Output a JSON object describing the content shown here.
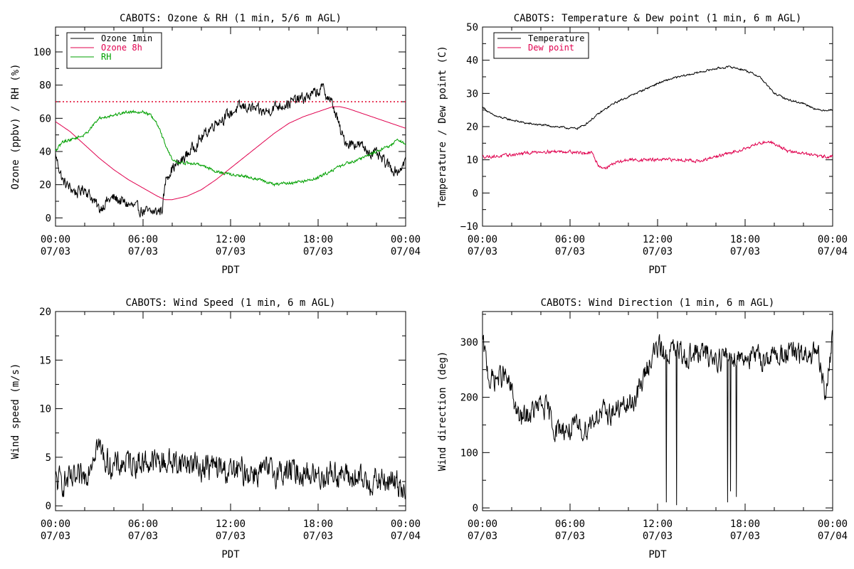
{
  "chart_data": [
    {
      "type": "line",
      "title": "CABOTS: Ozone & RH (1 min, 5/6 m AGL)",
      "xlabel": "PDT",
      "ylabel": "Ozone (ppbv) / RH (%)",
      "xlim": [
        0,
        24
      ],
      "ylim": [
        -5,
        115
      ],
      "x_ticks": [
        0,
        6,
        12,
        18,
        24
      ],
      "x_tick_labels": [
        [
          "00:00",
          "07/03"
        ],
        [
          "06:00",
          "07/03"
        ],
        [
          "12:00",
          "07/03"
        ],
        [
          "18:00",
          "07/03"
        ],
        [
          "00:00",
          "07/04"
        ]
      ],
      "y_ticks": [
        0,
        20,
        40,
        60,
        80,
        100
      ],
      "y_tick_labels": [
        "0",
        "20",
        "40",
        "60",
        "80",
        "100"
      ],
      "legend_position": "top-left",
      "reference_line": {
        "y": 70,
        "color": "#e0002a",
        "style": "dotted"
      },
      "series": [
        {
          "name": "Ozone 1min",
          "color": "#000000",
          "noise": 3,
          "x": [
            0,
            0.5,
            1,
            1.5,
            2,
            2.5,
            3,
            3.5,
            4,
            4.5,
            5,
            5.5,
            6,
            6.5,
            7,
            7.3,
            7.6,
            8,
            8.5,
            9,
            9.5,
            10,
            10.5,
            11,
            11.5,
            12,
            12.5,
            13,
            13.5,
            14,
            14.5,
            15,
            15.5,
            16,
            16.5,
            17,
            17.5,
            18,
            18.3,
            18.6,
            19,
            19.3,
            19.6,
            20,
            20.5,
            21,
            21.5,
            22,
            22.5,
            23,
            23.5,
            24
          ],
          "values": [
            38,
            22,
            18,
            15,
            18,
            12,
            5,
            10,
            12,
            10,
            8,
            6,
            4,
            3,
            4,
            5,
            25,
            30,
            33,
            38,
            43,
            48,
            53,
            58,
            60,
            63,
            66,
            67,
            66,
            64,
            64,
            67,
            68,
            69,
            71,
            72,
            74,
            76,
            78,
            74,
            68,
            60,
            50,
            45,
            45,
            43,
            40,
            38,
            34,
            30,
            28,
            35
          ]
        },
        {
          "name": "Ozone 8h",
          "color": "#e0004e",
          "noise": 0,
          "x": [
            0,
            1,
            2,
            3,
            4,
            5,
            6,
            7,
            7.5,
            8,
            9,
            10,
            11,
            12,
            13,
            14,
            15,
            16,
            17,
            18,
            19,
            19.5,
            20,
            21,
            22,
            23,
            24
          ],
          "values": [
            58,
            52,
            44,
            36,
            29,
            23,
            18,
            13,
            11,
            11,
            13,
            17,
            23,
            30,
            37,
            44,
            51,
            57,
            61,
            64,
            67,
            67,
            66,
            63,
            60,
            57,
            54
          ]
        },
        {
          "name": "RH",
          "color": "#00a000",
          "noise": 0.8,
          "x": [
            0,
            0.5,
            1,
            2,
            3,
            4,
            5,
            5.5,
            6,
            6.5,
            7,
            7.5,
            8,
            8.5,
            9,
            10,
            11,
            12,
            13,
            14,
            15,
            16,
            17,
            18,
            19,
            20,
            21,
            22,
            23,
            23.5,
            24
          ],
          "values": [
            40,
            46,
            47,
            50,
            60,
            62,
            64,
            64,
            64,
            62,
            56,
            45,
            35,
            33,
            33,
            32,
            28,
            26,
            25,
            23,
            20,
            21,
            22,
            24,
            29,
            33,
            36,
            40,
            44,
            47,
            44
          ]
        }
      ]
    },
    {
      "type": "line",
      "title": "CABOTS: Temperature & Dew point (1 min, 6 m AGL)",
      "xlabel": "PDT",
      "ylabel": "Temperature / Dew point (C)",
      "xlim": [
        0,
        24
      ],
      "ylim": [
        -10,
        50
      ],
      "x_ticks": [
        0,
        6,
        12,
        18,
        24
      ],
      "x_tick_labels": [
        [
          "00:00",
          "07/03"
        ],
        [
          "06:00",
          "07/03"
        ],
        [
          "12:00",
          "07/03"
        ],
        [
          "18:00",
          "07/03"
        ],
        [
          "00:00",
          "07/04"
        ]
      ],
      "y_ticks": [
        -10,
        0,
        10,
        20,
        30,
        40,
        50
      ],
      "y_tick_labels": [
        "−10",
        "0",
        "10",
        "20",
        "30",
        "40",
        "50"
      ],
      "legend_position": "top-left",
      "series": [
        {
          "name": "Temperature",
          "color": "#000000",
          "noise": 0.25,
          "x": [
            0,
            0.5,
            1,
            2,
            3,
            4,
            5,
            6,
            6.5,
            7,
            8,
            9,
            10,
            11,
            12,
            13,
            14,
            15,
            16,
            17,
            18,
            19,
            20,
            21,
            22,
            23,
            24
          ],
          "values": [
            26,
            24,
            23,
            22,
            21,
            20.5,
            20,
            19.5,
            19.5,
            20.5,
            24,
            27,
            29,
            31,
            33,
            34.5,
            35.5,
            36.5,
            37.5,
            38,
            37,
            35,
            30,
            28,
            27,
            25,
            25
          ]
        },
        {
          "name": "Dew point",
          "color": "#e0004e",
          "noise": 0.4,
          "x": [
            0,
            1,
            2,
            3,
            4,
            5,
            6,
            7,
            7.5,
            8,
            8.5,
            9,
            10,
            11,
            12,
            13,
            14,
            15,
            16,
            17,
            18,
            19,
            19.5,
            20,
            21,
            22,
            23,
            24
          ],
          "values": [
            11,
            11,
            11.5,
            12,
            12.5,
            12.5,
            12.5,
            12,
            12,
            8,
            7.5,
            9,
            10,
            10,
            10,
            10,
            10,
            9.5,
            11,
            12,
            13.5,
            15,
            15.5,
            15,
            12.5,
            12,
            11,
            11
          ]
        }
      ]
    },
    {
      "type": "line",
      "title": "CABOTS: Wind Speed (1 min, 6 m AGL)",
      "xlabel": "PDT",
      "ylabel": "Wind speed (m/s)",
      "xlim": [
        0,
        24
      ],
      "ylim": [
        -0.5,
        20
      ],
      "x_ticks": [
        0,
        6,
        12,
        18,
        24
      ],
      "x_tick_labels": [
        [
          "00:00",
          "07/03"
        ],
        [
          "06:00",
          "07/03"
        ],
        [
          "12:00",
          "07/03"
        ],
        [
          "18:00",
          "07/03"
        ],
        [
          "00:00",
          "07/04"
        ]
      ],
      "y_ticks": [
        0,
        5,
        10,
        15,
        20
      ],
      "y_tick_labels": [
        "0",
        "5",
        "10",
        "15",
        "20"
      ],
      "series": [
        {
          "name": "",
          "color": "#000000",
          "noise": 1.2,
          "x": [
            0,
            0.5,
            1,
            1.5,
            2,
            2.5,
            2.8,
            3,
            3.5,
            4,
            5,
            6,
            7,
            8,
            9,
            10,
            11,
            12,
            13,
            14,
            15,
            16,
            17,
            18,
            19,
            20,
            21,
            22,
            23,
            24
          ],
          "values": [
            2.5,
            2.5,
            2.5,
            2.5,
            3,
            5,
            6.5,
            6,
            4.5,
            4,
            4.5,
            4.5,
            4.5,
            4.5,
            4.5,
            4,
            4,
            3.5,
            3.5,
            3.5,
            3.5,
            3.5,
            3.5,
            3,
            3.5,
            3,
            2.5,
            2.5,
            2.5,
            2
          ]
        }
      ]
    },
    {
      "type": "line",
      "title": "CABOTS: Wind Direction (1 min, 6 m AGL)",
      "xlabel": "PDT",
      "ylabel": "Wind direction (deg)",
      "xlim": [
        0,
        24
      ],
      "ylim": [
        -5,
        355
      ],
      "x_ticks": [
        0,
        6,
        12,
        18,
        24
      ],
      "x_tick_labels": [
        [
          "00:00",
          "07/03"
        ],
        [
          "06:00",
          "07/03"
        ],
        [
          "12:00",
          "07/03"
        ],
        [
          "18:00",
          "07/03"
        ],
        [
          "00:00",
          "07/04"
        ]
      ],
      "y_ticks": [
        0,
        100,
        200,
        300
      ],
      "y_tick_labels": [
        "0",
        "100",
        "200",
        "300"
      ],
      "series": [
        {
          "name": "",
          "color": "#000000",
          "noise": 18,
          "x": [
            0,
            0.5,
            1,
            1.5,
            2,
            2.5,
            3,
            3.5,
            4,
            4.5,
            5,
            5.5,
            6,
            6.5,
            7,
            7.5,
            8,
            8.5,
            9,
            9.5,
            10,
            10.5,
            11,
            11.5,
            12,
            12.5,
            13,
            14,
            15,
            16,
            17,
            18,
            19,
            20,
            21,
            22,
            23,
            23.5,
            24
          ],
          "values": [
            300,
            230,
            235,
            240,
            210,
            160,
            165,
            175,
            185,
            175,
            140,
            145,
            140,
            145,
            140,
            160,
            170,
            170,
            175,
            180,
            185,
            200,
            230,
            270,
            290,
            280,
            285,
            275,
            280,
            270,
            275,
            275,
            270,
            275,
            280,
            275,
            275,
            200,
            310
          ],
          "dips": [
            [
              12.6,
              10
            ],
            [
              13.3,
              5
            ],
            [
              16.8,
              10
            ],
            [
              17,
              30
            ],
            [
              17.4,
              20
            ]
          ]
        }
      ]
    }
  ]
}
